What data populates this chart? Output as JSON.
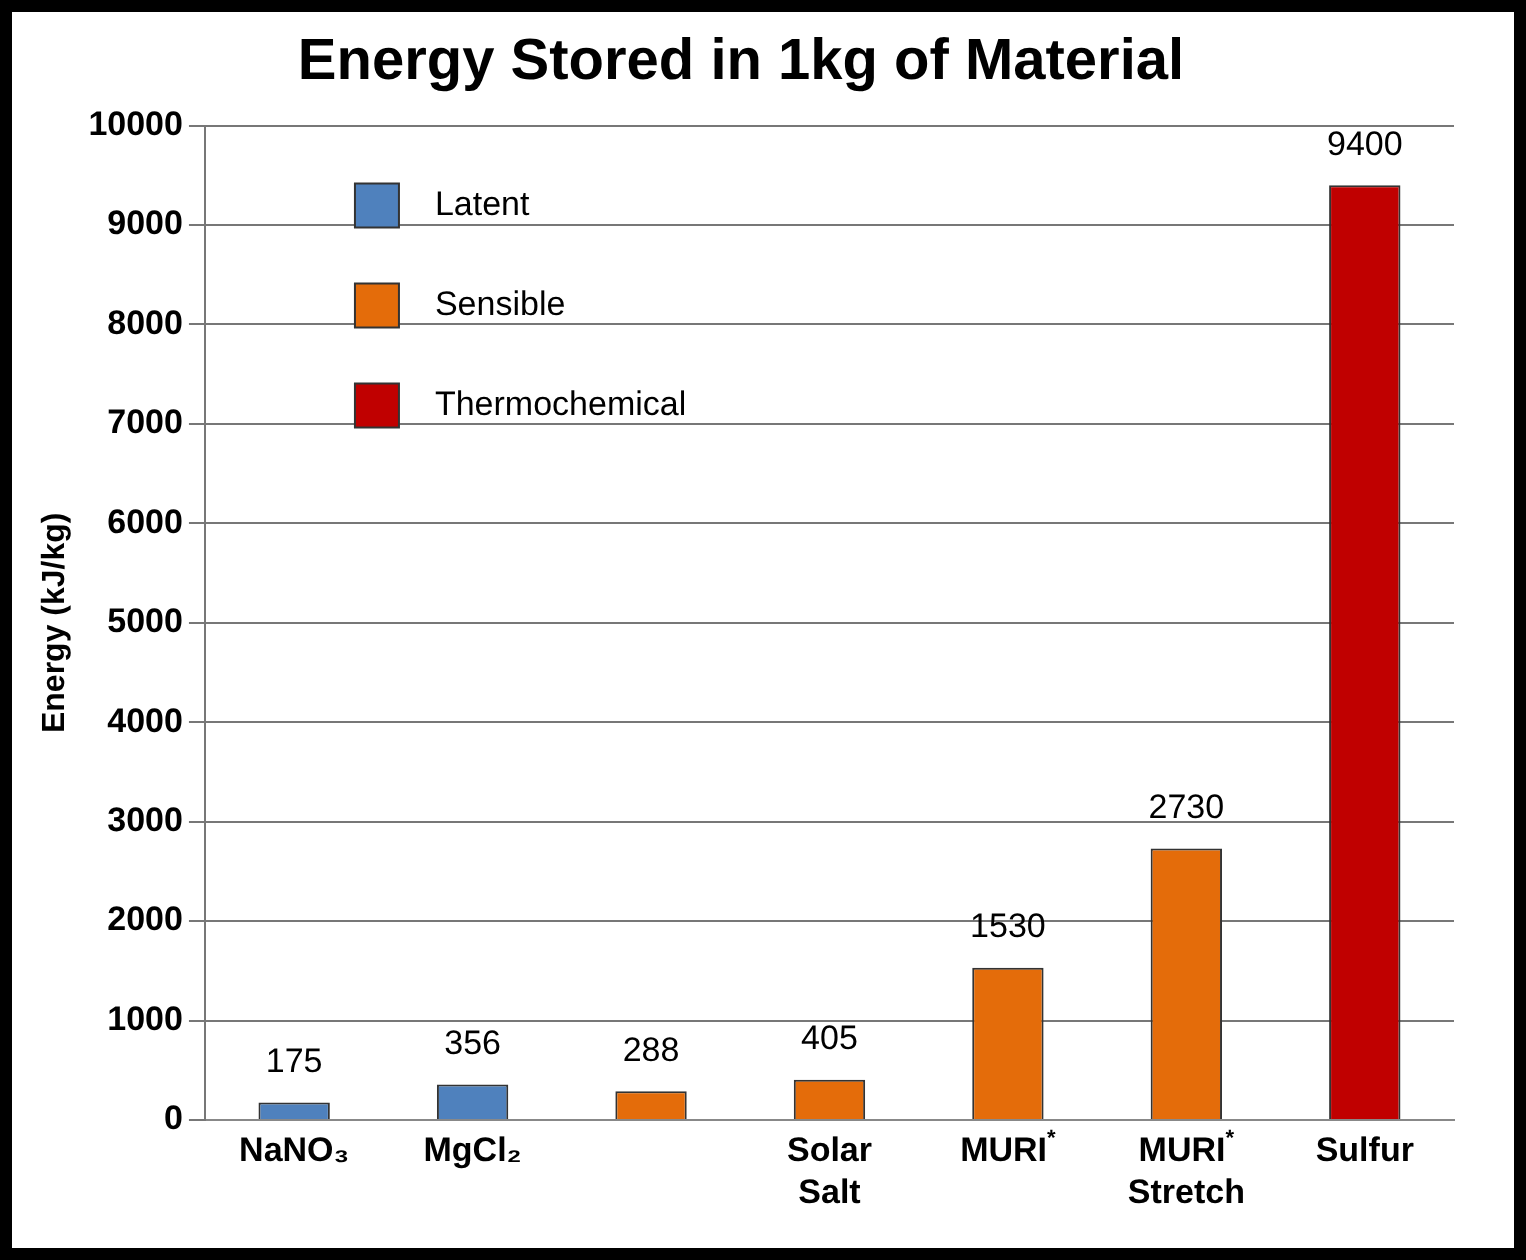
{
  "chart_data": {
    "type": "bar",
    "title": "Energy Stored in 1kg of Material",
    "ylabel": "Energy (kJ/kg)",
    "categories": [
      "NaNO₃",
      "MgCl₂",
      null,
      "Solar\nSalt",
      "MURI$^{*}$",
      "MURI$^{*}$\nStretch",
      "Sulfur"
    ],
    "series": [
      {
        "name": "Latent",
        "color": "#4f81bd",
        "values": [
          175,
          356,
          null,
          null,
          null,
          null,
          null
        ]
      },
      {
        "name": "Sensible",
        "color": "#e46c0a",
        "values": [
          null,
          null,
          288,
          405,
          1530,
          2730,
          null
        ]
      },
      {
        "name": "Thermochemical",
        "color": "#c00000",
        "values": [
          null,
          null,
          null,
          null,
          null,
          null,
          9400
        ]
      }
    ],
    "ylim": [
      0,
      10000
    ],
    "yticks": [
      0,
      1000,
      2000,
      3000,
      4000,
      5000,
      6000,
      7000,
      8000,
      9000,
      10000
    ],
    "grid": "y",
    "legend": "top left",
    "data_labels": true
  }
}
